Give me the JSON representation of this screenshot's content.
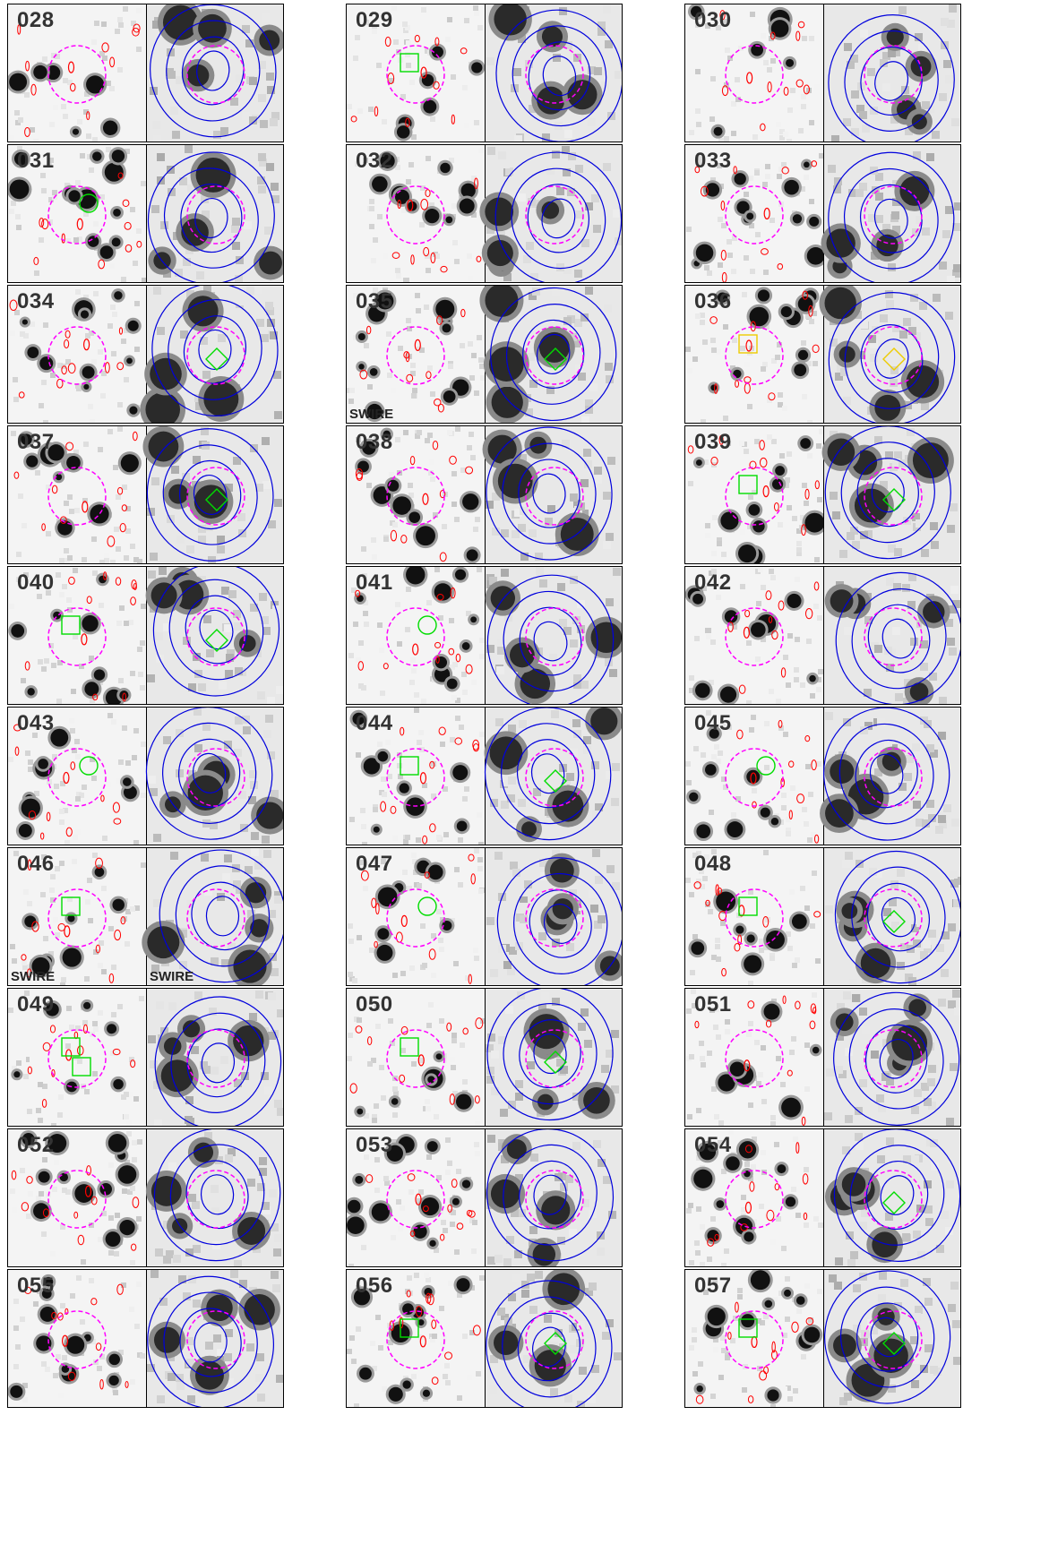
{
  "colors": {
    "radio_contour": "#ff0000",
    "submm_contour": "#0000dd",
    "search_circle": "#ff00ff",
    "id_marker": "#00dd00",
    "alt_marker": "#eecc00",
    "background": "#ffffff"
  },
  "panels": [
    {
      "id": "028",
      "label": "028",
      "markers": []
    },
    {
      "id": "029",
      "label": "029",
      "markers": [
        {
          "type": "square",
          "side": "left",
          "color": "green"
        }
      ]
    },
    {
      "id": "030",
      "label": "030",
      "markers": []
    },
    {
      "id": "031",
      "label": "031",
      "markers": [
        {
          "type": "circle",
          "side": "left",
          "color": "green"
        }
      ]
    },
    {
      "id": "032",
      "label": "032",
      "markers": []
    },
    {
      "id": "033",
      "label": "033",
      "markers": []
    },
    {
      "id": "034",
      "label": "034",
      "markers": [
        {
          "type": "diamond",
          "side": "right",
          "color": "green"
        }
      ]
    },
    {
      "id": "035",
      "label": "035",
      "tag_left": "SWIRE",
      "markers": [
        {
          "type": "diamond",
          "side": "right",
          "color": "green"
        }
      ]
    },
    {
      "id": "036",
      "label": "036",
      "markers": [
        {
          "type": "square",
          "side": "left",
          "color": "yellow"
        },
        {
          "type": "diamond",
          "side": "right",
          "color": "yellow"
        }
      ]
    },
    {
      "id": "037",
      "label": "037",
      "markers": [
        {
          "type": "diamond",
          "side": "right",
          "color": "green"
        }
      ]
    },
    {
      "id": "038",
      "label": "038",
      "markers": []
    },
    {
      "id": "039",
      "label": "039",
      "markers": [
        {
          "type": "square",
          "side": "left",
          "color": "green"
        },
        {
          "type": "diamond",
          "side": "right",
          "color": "green"
        }
      ]
    },
    {
      "id": "040",
      "label": "040",
      "markers": [
        {
          "type": "square",
          "side": "left",
          "color": "green"
        },
        {
          "type": "diamond",
          "side": "right",
          "color": "green"
        }
      ]
    },
    {
      "id": "041",
      "label": "041",
      "markers": [
        {
          "type": "circle",
          "side": "left",
          "color": "green"
        }
      ]
    },
    {
      "id": "042",
      "label": "042",
      "markers": []
    },
    {
      "id": "043",
      "label": "043",
      "markers": [
        {
          "type": "circle",
          "side": "left",
          "color": "green"
        }
      ]
    },
    {
      "id": "044",
      "label": "044",
      "markers": [
        {
          "type": "square",
          "side": "left",
          "color": "green"
        },
        {
          "type": "diamond",
          "side": "right",
          "color": "green"
        }
      ]
    },
    {
      "id": "045",
      "label": "045",
      "markers": [
        {
          "type": "circle",
          "side": "left",
          "color": "green"
        }
      ]
    },
    {
      "id": "046",
      "label": "046",
      "tag_left": "SWIRE",
      "tag_right": "SWIRE",
      "markers": [
        {
          "type": "square",
          "side": "left",
          "color": "green"
        }
      ]
    },
    {
      "id": "047",
      "label": "047",
      "markers": [
        {
          "type": "circle",
          "side": "left",
          "color": "green"
        }
      ]
    },
    {
      "id": "048",
      "label": "048",
      "markers": [
        {
          "type": "square",
          "side": "left",
          "color": "green"
        },
        {
          "type": "diamond",
          "side": "right",
          "color": "green"
        }
      ]
    },
    {
      "id": "049",
      "label": "049",
      "markers": [
        {
          "type": "square",
          "side": "left",
          "color": "green"
        },
        {
          "type": "square",
          "side": "left",
          "color": "green"
        }
      ]
    },
    {
      "id": "050",
      "label": "050",
      "markers": [
        {
          "type": "square",
          "side": "left",
          "color": "green"
        },
        {
          "type": "diamond",
          "side": "right",
          "color": "green"
        }
      ]
    },
    {
      "id": "051",
      "label": "051",
      "markers": []
    },
    {
      "id": "052",
      "label": "052",
      "markers": []
    },
    {
      "id": "053",
      "label": "053",
      "markers": []
    },
    {
      "id": "054",
      "label": "054",
      "markers": [
        {
          "type": "diamond",
          "side": "right",
          "color": "green"
        }
      ]
    },
    {
      "id": "055",
      "label": "055",
      "markers": []
    },
    {
      "id": "056",
      "label": "056",
      "markers": [
        {
          "type": "square",
          "side": "left",
          "color": "green"
        },
        {
          "type": "diamond",
          "side": "right",
          "color": "green"
        }
      ]
    },
    {
      "id": "057",
      "label": "057",
      "markers": [
        {
          "type": "square",
          "side": "left",
          "color": "green"
        },
        {
          "type": "diamond",
          "side": "right",
          "color": "green"
        }
      ]
    }
  ]
}
